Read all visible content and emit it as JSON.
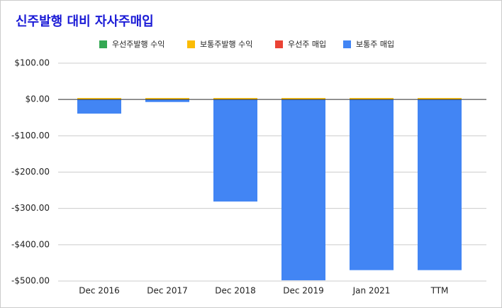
{
  "chart_data": {
    "type": "stacked_bar",
    "title": "신주발행 대비 자사주매입",
    "categories": [
      "Dec 2016",
      "Dec 2017",
      "Dec 2018",
      "Dec 2019",
      "Jan 2021",
      "TTM"
    ],
    "series": [
      {
        "name": "우선주발행 수익",
        "color": "#34a853",
        "values": [
          0,
          0,
          0,
          0,
          0,
          0
        ]
      },
      {
        "name": "보통주발행 수익",
        "color": "#fbbc04",
        "values": [
          4,
          4,
          4,
          4,
          4,
          4
        ]
      },
      {
        "name": "우선주 매입",
        "color": "#ea4335",
        "values": [
          0,
          0,
          0,
          0,
          0,
          0
        ]
      },
      {
        "name": "보통주 매입",
        "color": "#4285f4",
        "values": [
          -39,
          -7,
          -281,
          -498,
          -470,
          -470
        ]
      }
    ],
    "ylim": [
      -500,
      100
    ],
    "yticks": [
      {
        "value": 100,
        "label": "$100.00"
      },
      {
        "value": 0,
        "label": "$0.00"
      },
      {
        "value": -100,
        "label": "-$100.00"
      },
      {
        "value": -200,
        "label": "-$200.00"
      },
      {
        "value": -300,
        "label": "-$300.00"
      },
      {
        "value": -400,
        "label": "-$400.00"
      },
      {
        "value": -500,
        "label": "-$500.00"
      }
    ],
    "grid": true,
    "legend": "top"
  }
}
